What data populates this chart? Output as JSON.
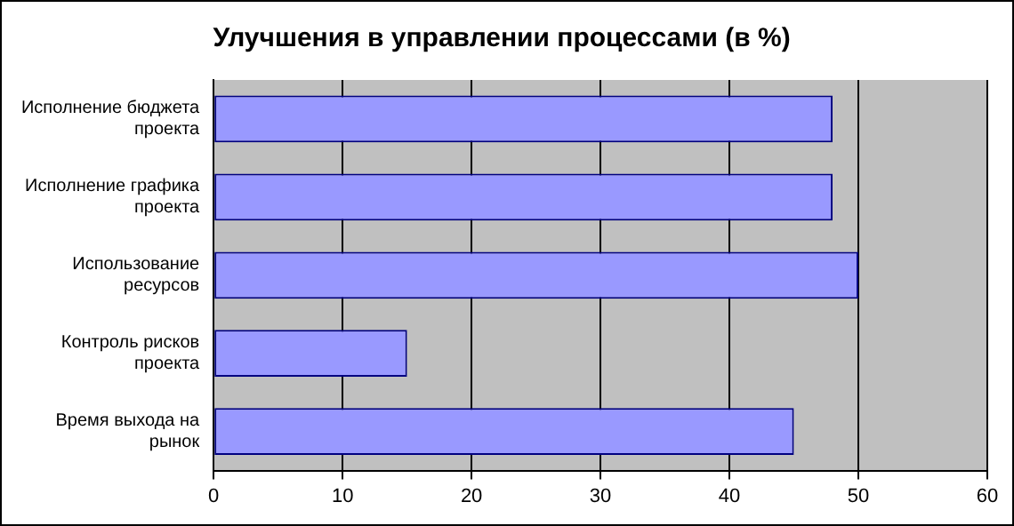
{
  "chart_data": {
    "type": "bar",
    "orientation": "horizontal",
    "title": "Улучшения в управлении процессами (в %)",
    "categories": [
      "Исполнение бюджета проекта",
      "Исполнение графика проекта",
      "Использование ресурсов",
      "Контроль рисков проекта",
      "Время выхода на рынок"
    ],
    "values": [
      48,
      48,
      50,
      15,
      45
    ],
    "color": "#9999ff",
    "xlim": [
      0,
      60
    ],
    "xticks": [
      0,
      10,
      20,
      30,
      40,
      50,
      60
    ],
    "grid": "x",
    "legend": false
  }
}
